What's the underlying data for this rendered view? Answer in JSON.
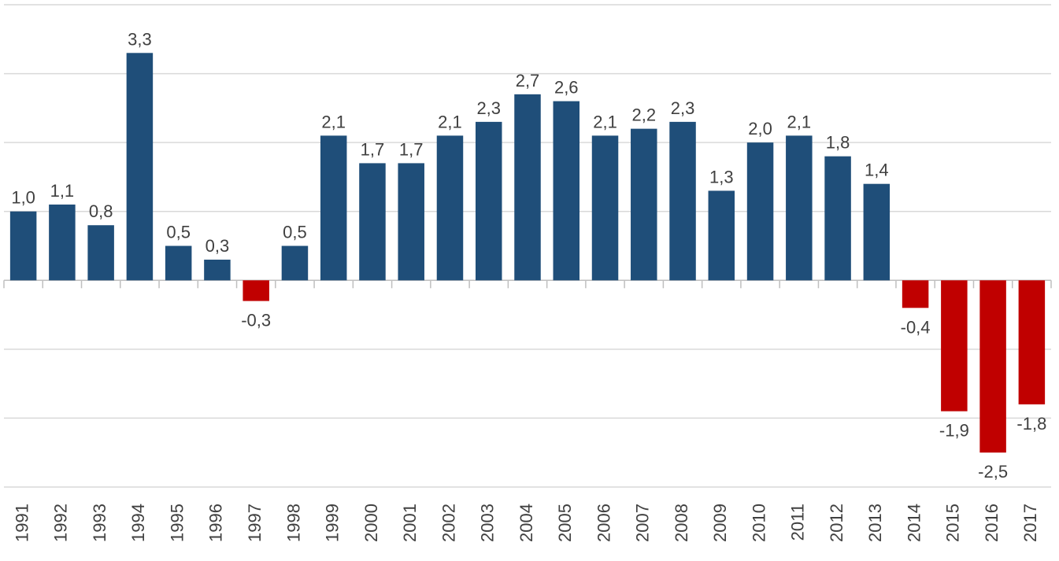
{
  "chart_data": {
    "type": "bar",
    "categories": [
      "1991",
      "1992",
      "1993",
      "1994",
      "1995",
      "1996",
      "1997",
      "1998",
      "1999",
      "2000",
      "2001",
      "2002",
      "2003",
      "2004",
      "2005",
      "2006",
      "2007",
      "2008",
      "2009",
      "2010",
      "2011",
      "2012",
      "2013",
      "2014",
      "2015",
      "2016",
      "2017"
    ],
    "values": [
      1.0,
      1.1,
      0.8,
      3.3,
      0.5,
      0.3,
      -0.3,
      0.5,
      2.1,
      1.7,
      1.7,
      2.1,
      2.3,
      2.7,
      2.6,
      2.1,
      2.2,
      2.3,
      1.3,
      2.0,
      2.1,
      1.8,
      1.4,
      -0.4,
      -1.9,
      -2.5,
      -1.8
    ],
    "value_labels": [
      "1,0",
      "1,1",
      "0,8",
      "3,3",
      "0,5",
      "0,3",
      "-0,3",
      "0,5",
      "2,1",
      "1,7",
      "1,7",
      "2,1",
      "2,3",
      "2,7",
      "2,6",
      "2,1",
      "2,2",
      "2,3",
      "1,3",
      "2,0",
      "2,1",
      "1,8",
      "1,4",
      "-0,4",
      "-1,9",
      "-2,5",
      "-1,8"
    ],
    "color": "#1f4e79",
    "negative_color": "#c00000",
    "ylim": [
      -3,
      4
    ],
    "yticks": [
      -3,
      -2,
      -1,
      0,
      1,
      2,
      3,
      4
    ],
    "grid": true
  }
}
